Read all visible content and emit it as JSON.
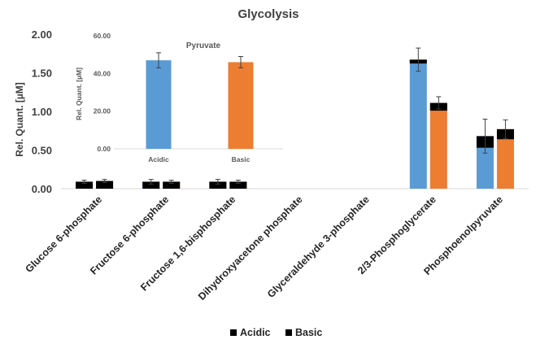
{
  "chart_data": [
    {
      "type": "bar",
      "title": "Glycolysis",
      "ylabel": "Rel. Quant. [µM]",
      "xlabel": "",
      "ylim": [
        0,
        2.0
      ],
      "yticks": [
        "0.00",
        "0.50",
        "1.00",
        "1.50",
        "2.00"
      ],
      "categories": [
        "Glucose 6-phosphate",
        "Fructose 6-phosphate",
        "Fructose 1,6-bisphosphate",
        "Dihydroxyacetone phosphate",
        "Glyceraldehyde 3-phosphate",
        "2/3-Phosphoglycerate",
        "Phosphoenolpyruvate"
      ],
      "series": [
        {
          "name": "Acidic",
          "color": "#5b9bd5",
          "legend_color": "#000000",
          "values": [
            0.09,
            0.09,
            0.09,
            0,
            0,
            1.67,
            0.68
          ],
          "error": [
            0.02,
            0.03,
            0.03,
            0,
            0,
            0.15,
            0.22
          ],
          "black_cap": [
            1,
            1,
            1,
            0,
            0,
            0.05,
            0.15
          ]
        },
        {
          "name": "Basic",
          "color": "#ed7d31",
          "legend_color": "#000000",
          "values": [
            0.1,
            0.09,
            0.09,
            0,
            0,
            1.11,
            0.77
          ],
          "error": [
            0.02,
            0.02,
            0.02,
            0,
            0,
            0.08,
            0.12
          ],
          "black_cap": [
            1,
            1,
            1,
            0,
            0,
            0.1,
            0.13
          ]
        }
      ],
      "legend": "bottom",
      "grid": false
    },
    {
      "type": "bar",
      "title": "Pyruvate",
      "ylabel": "Rel. Quant. [µM]",
      "ylim": [
        0,
        60
      ],
      "yticks": [
        "0.00",
        "20.00",
        "40.00",
        "60.00"
      ],
      "categories": [
        "Acidic",
        "Basic"
      ],
      "values": [
        47.0,
        46.0
      ],
      "error": [
        4.0,
        3.0
      ],
      "colors": [
        "#5b9bd5",
        "#ed7d31"
      ],
      "grid": false
    }
  ]
}
